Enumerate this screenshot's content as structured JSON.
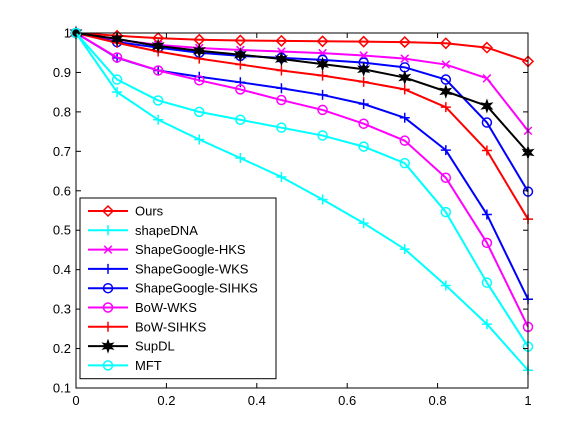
{
  "chart_data": {
    "type": "line",
    "title": "",
    "xlabel": "",
    "ylabel": "",
    "xlim": [
      0,
      1
    ],
    "ylim": [
      0.1,
      1
    ],
    "x_ticks": [
      "0",
      "0.2",
      "0.4",
      "0.6",
      "0.8",
      "1"
    ],
    "y_ticks": [
      "0.1",
      "0.2",
      "0.3",
      "0.4",
      "0.5",
      "0.6",
      "0.7",
      "0.8",
      "0.9",
      "1"
    ],
    "grid": false,
    "legend_position": "bottom-left",
    "x": [
      0,
      0.0909,
      0.1818,
      0.2727,
      0.3636,
      0.4545,
      0.5455,
      0.6364,
      0.7273,
      0.8182,
      0.9091,
      1.0
    ],
    "series": [
      {
        "name": "Ours",
        "color": "#ff0000",
        "marker": "diamond",
        "values": [
          1.0,
          0.993,
          0.987,
          0.983,
          0.981,
          0.98,
          0.979,
          0.978,
          0.977,
          0.974,
          0.963,
          0.928
        ]
      },
      {
        "name": "shapeDNA",
        "color": "#00ffff",
        "marker": "plus",
        "values": [
          1.0,
          0.85,
          0.78,
          0.73,
          0.683,
          0.635,
          0.578,
          0.518,
          0.452,
          0.36,
          0.262,
          0.145
        ]
      },
      {
        "name": "ShapeGoogle-HKS",
        "color": "#ff00ff",
        "marker": "x",
        "values": [
          1.0,
          0.983,
          0.97,
          0.962,
          0.957,
          0.953,
          0.949,
          0.943,
          0.935,
          0.92,
          0.885,
          0.752
        ]
      },
      {
        "name": "ShapeGoogle-WKS",
        "color": "#0000ff",
        "marker": "plus",
        "values": [
          1.0,
          0.937,
          0.905,
          0.889,
          0.875,
          0.86,
          0.843,
          0.82,
          0.785,
          0.703,
          0.54,
          0.325
        ]
      },
      {
        "name": "ShapeGoogle-SIHKS",
        "color": "#0000ff",
        "marker": "circle",
        "values": [
          1.0,
          0.977,
          0.963,
          0.95,
          0.942,
          0.937,
          0.932,
          0.925,
          0.913,
          0.882,
          0.773,
          0.598
        ]
      },
      {
        "name": "BoW-WKS",
        "color": "#ff00ff",
        "marker": "circle",
        "values": [
          1.0,
          0.938,
          0.905,
          0.88,
          0.857,
          0.83,
          0.805,
          0.77,
          0.727,
          0.633,
          0.468,
          0.255
        ]
      },
      {
        "name": "BoW-SIHKS",
        "color": "#ff0000",
        "marker": "plus",
        "values": [
          1.0,
          0.975,
          0.953,
          0.935,
          0.92,
          0.905,
          0.892,
          0.876,
          0.857,
          0.812,
          0.702,
          0.528
        ]
      },
      {
        "name": "SupDL",
        "color": "#000000",
        "marker": "star",
        "values": [
          1.0,
          0.985,
          0.967,
          0.955,
          0.945,
          0.934,
          0.921,
          0.908,
          0.887,
          0.852,
          0.815,
          0.697
        ]
      },
      {
        "name": "MFT",
        "color": "#00ffff",
        "marker": "circle",
        "values": [
          1.0,
          0.882,
          0.829,
          0.8,
          0.78,
          0.76,
          0.74,
          0.712,
          0.67,
          0.546,
          0.367,
          0.205
        ]
      }
    ]
  }
}
